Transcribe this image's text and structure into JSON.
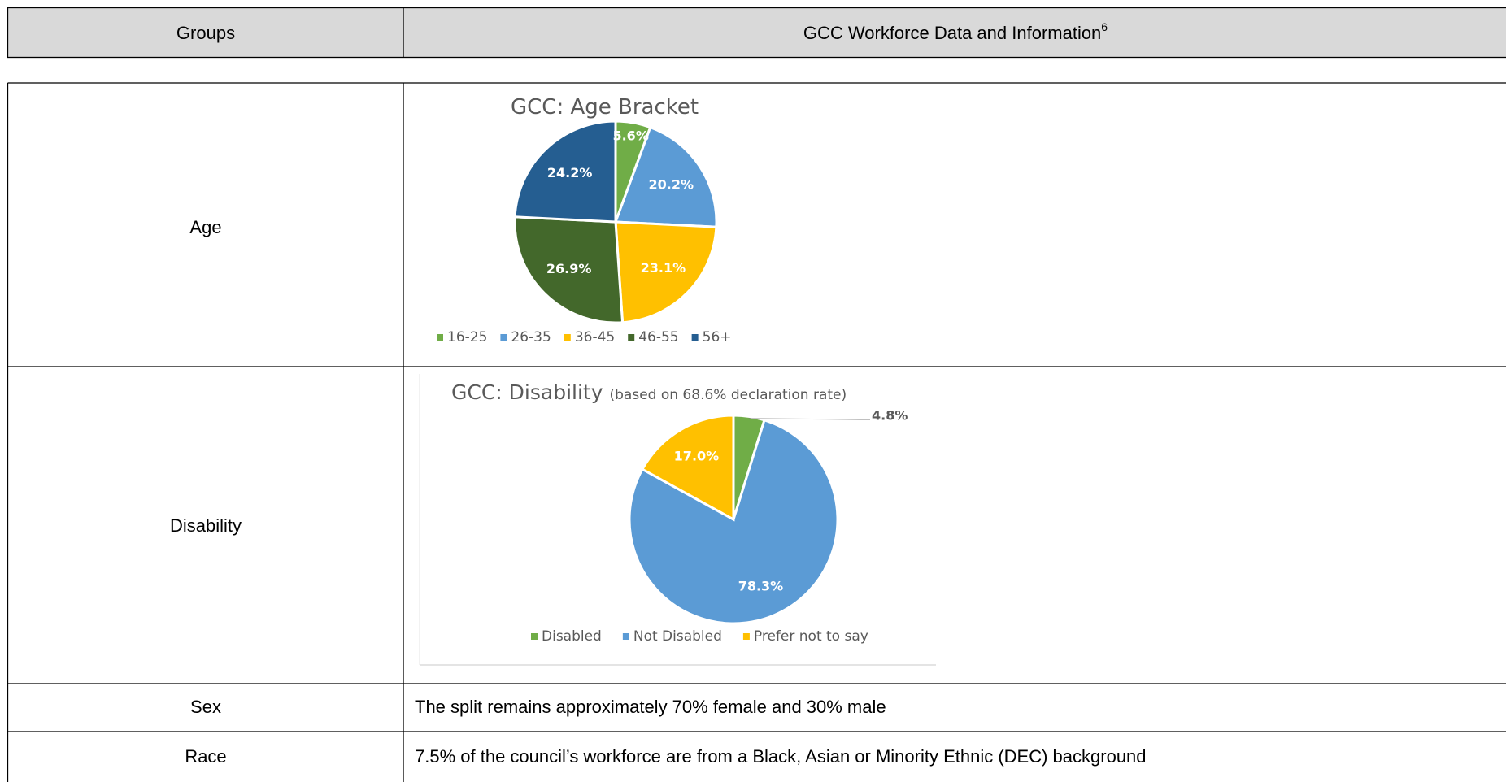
{
  "header": {
    "groups": "Groups",
    "info": "GCC Workforce Data and Information",
    "footnote": "6"
  },
  "table": {
    "rows": [
      {
        "group": "Age",
        "chart": {
          "type": "pie",
          "title": "GCC: Age Bracket",
          "categories": [
            "16-25",
            "26-35",
            "36-45",
            "46-55",
            "56+"
          ],
          "values": [
            5.6,
            20.2,
            23.1,
            26.9,
            24.2
          ],
          "value_labels": [
            "5.6%",
            "20.2%",
            "23.1%",
            "26.9%",
            "24.2%"
          ],
          "colors": [
            "#70ad47",
            "#5b9bd5",
            "#ffc000",
            "#43682b",
            "#255e91"
          ]
        }
      },
      {
        "group": "Disability",
        "chart": {
          "type": "pie",
          "title": "GCC: Disability",
          "subtitle": "(based on 68.6% declaration rate)",
          "categories": [
            "Disabled",
            "Not Disabled",
            "Prefer not to say"
          ],
          "values": [
            4.8,
            78.3,
            17.0
          ],
          "value_labels": [
            "4.8%",
            "78.3%",
            "17.0%"
          ],
          "colors": [
            "#70ad47",
            "#5b9bd5",
            "#ffc000"
          ]
        }
      },
      {
        "group": "Sex",
        "text": "The split remains approximately 70% female and 30% male"
      },
      {
        "group": "Race",
        "text": "7.5% of the council’s workforce are from a Black, Asian or Minority Ethnic (DEC) background"
      }
    ]
  }
}
